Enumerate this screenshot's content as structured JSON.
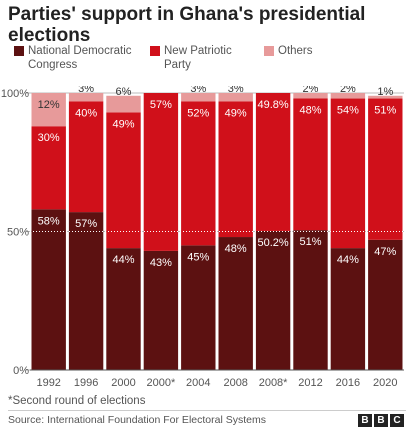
{
  "title": "Parties' support in Ghana's presidential elections",
  "legend": [
    {
      "label": "National Democratic Congress",
      "color": "#5c1111"
    },
    {
      "label": "New Patriotic Party",
      "color": "#d0101a"
    },
    {
      "label": "Others",
      "color": "#e79a9a"
    }
  ],
  "footnote": "*Second round of elections",
  "source": "Source: International Foundation For Electoral Systems",
  "logo": "BBC",
  "chart_data": {
    "type": "bar",
    "stacked": true,
    "categories": [
      "1992",
      "1996",
      "2000",
      "2000*",
      "2004",
      "2008",
      "2008*",
      "2012",
      "2016",
      "2020"
    ],
    "series": [
      {
        "name": "National Democratic Congress",
        "color": "#5c1111",
        "values": [
          58,
          57,
          44,
          43,
          45,
          48,
          50.2,
          51,
          44,
          47
        ],
        "labels": [
          "58%",
          "57%",
          "44%",
          "43%",
          "45%",
          "48%",
          "50.2%",
          "51%",
          "44%",
          "47%"
        ]
      },
      {
        "name": "New Patriotic Party",
        "color": "#d0101a",
        "values": [
          30,
          40,
          49,
          57,
          52,
          49,
          49.8,
          48,
          54,
          51
        ],
        "labels": [
          "30%",
          "40%",
          "49%",
          "57%",
          "52%",
          "49%",
          "49.8%",
          "48%",
          "54%",
          "51%"
        ]
      },
      {
        "name": "Others",
        "color": "#e79a9a",
        "values": [
          12,
          3,
          6,
          0,
          3,
          3,
          0,
          2,
          2,
          1
        ],
        "labels": [
          "12%",
          "3%",
          "6%",
          "",
          "3%",
          "3%",
          "",
          "2%",
          "2%",
          "1%"
        ]
      }
    ],
    "y_ticks": [
      {
        "value": 100,
        "label": "100%"
      },
      {
        "value": 50,
        "label": "50%"
      },
      {
        "value": 0,
        "label": "0%"
      }
    ],
    "ylim": [
      0,
      100
    ],
    "reference_line": 50,
    "legend_position": "top"
  }
}
